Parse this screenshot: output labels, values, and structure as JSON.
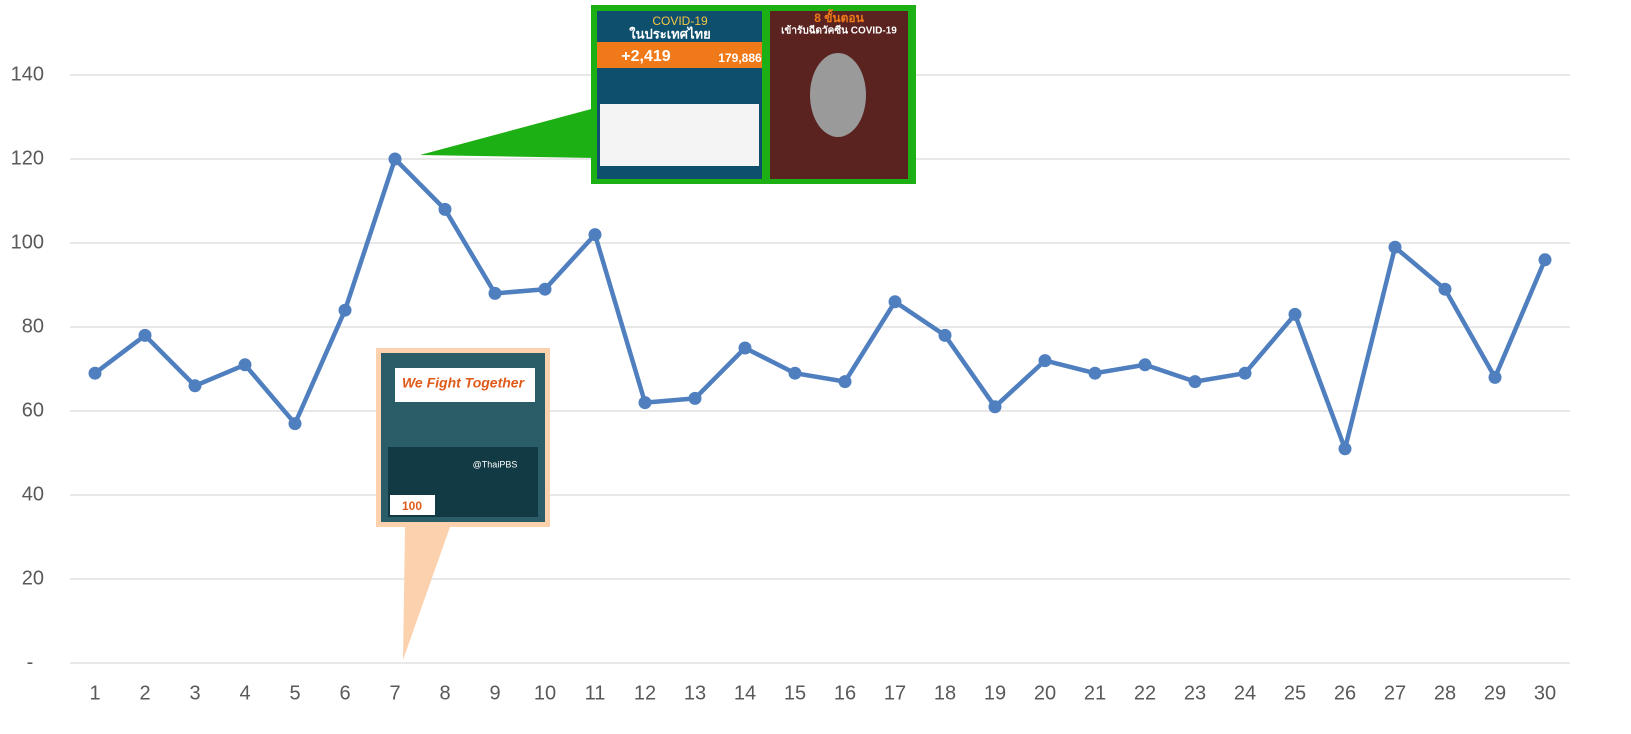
{
  "chart_data": {
    "type": "line",
    "categories": [
      "1",
      "2",
      "3",
      "4",
      "5",
      "6",
      "7",
      "8",
      "9",
      "10",
      "11",
      "12",
      "13",
      "14",
      "15",
      "16",
      "17",
      "18",
      "19",
      "20",
      "21",
      "22",
      "23",
      "24",
      "25",
      "26",
      "27",
      "28",
      "29",
      "30"
    ],
    "series": [
      {
        "color": "#4f7fbe",
        "values": [
          69,
          78,
          66,
          71,
          57,
          84,
          120,
          108,
          88,
          89,
          102,
          62,
          63,
          75,
          69,
          67,
          86,
          78,
          61,
          72,
          69,
          71,
          67,
          69,
          83,
          51,
          99,
          89,
          68,
          96
        ]
      }
    ],
    "ylim": [
      0,
      150
    ],
    "yticks": [
      {
        "value": 0,
        "label": "-"
      },
      20,
      40,
      60,
      80,
      100,
      120,
      140
    ],
    "grid": true,
    "annotations": [
      "COVID-19",
      "ในประเทศไทย",
      "+2,419",
      "179,886",
      "8 ขั้นตอน",
      "เข้ารับฉีดวัคซีน COVID-19",
      "We Fight Together",
      "@ThaiPBS",
      "100"
    ]
  }
}
